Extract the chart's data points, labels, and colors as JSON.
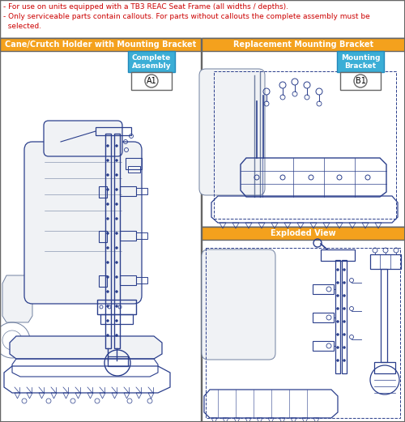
{
  "notes_line1": "- For use on units equipped with a TB3 REAC Seat Frame (all widths / depths).",
  "notes_line2": "- Only serviceable parts contain callouts. For parts without callouts the complete assembly must be",
  "notes_line3": "  selected.",
  "panel_left_title": "Cane/Crutch Holder with Mounting Bracket",
  "panel_right_top_title": "Replacement Mounting Bracket",
  "panel_right_bottom_title": "Exploded View",
  "label_a1_line1": "Complete",
  "label_a1_line2": "Assembly",
  "label_a1_code": "A1",
  "label_b1_line1": "Mounting",
  "label_b1_line2": "Bracket",
  "label_b1_code": "B1",
  "color_orange": "#F4A11D",
  "color_blue_label": "#3BAED6",
  "color_border": "#666666",
  "color_red": "#CC0000",
  "color_white": "#FFFFFF",
  "color_draw": "#2B3F8C",
  "color_draw_light": "#7080A0",
  "color_fill_light": "#F0F2F5",
  "fig_w": 5.0,
  "fig_h": 5.21,
  "fig_dpi": 100
}
